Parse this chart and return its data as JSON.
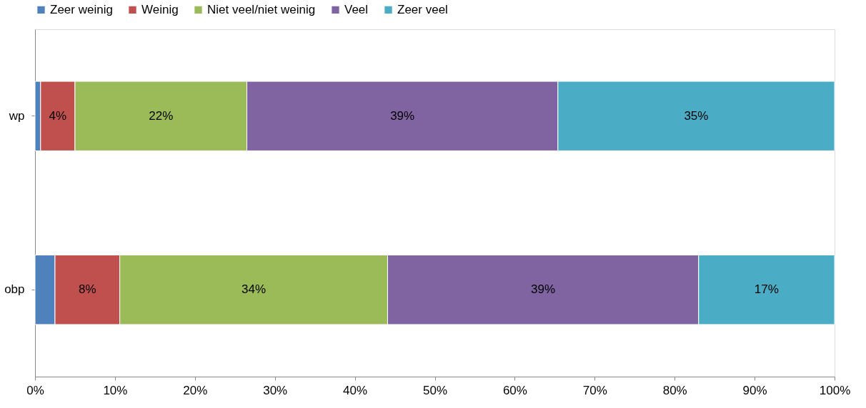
{
  "chart_data": {
    "type": "bar",
    "orientation": "horizontal",
    "stacked": true,
    "categories": [
      "wp",
      "obp"
    ],
    "series": [
      {
        "name": "Zeer weinig",
        "color": "#4f81bd",
        "values": [
          0.7,
          2.5
        ],
        "value_labels": [
          null,
          null
        ]
      },
      {
        "name": "Weinig",
        "color": "#c0504d",
        "values": [
          4.3,
          8.1
        ],
        "value_labels": [
          "4%",
          "8%"
        ]
      },
      {
        "name": "Niet veel/niet weinig",
        "color": "#9bbb59",
        "values": [
          21.5,
          33.5
        ],
        "value_labels": [
          "22%",
          "34%"
        ]
      },
      {
        "name": "Veel",
        "color": "#8064a2",
        "values": [
          38.9,
          38.9
        ],
        "value_labels": [
          "39%",
          "39%"
        ]
      },
      {
        "name": "Zeer veel",
        "color": "#4bacc6",
        "values": [
          34.6,
          17.0
        ],
        "value_labels": [
          "35%",
          "17%"
        ]
      }
    ],
    "xlim": [
      0,
      100
    ],
    "xticks": [
      {
        "value": 0,
        "label": "0%"
      },
      {
        "value": 10,
        "label": "10%"
      },
      {
        "value": 20,
        "label": "20%"
      },
      {
        "value": 30,
        "label": "30%"
      },
      {
        "value": 40,
        "label": "40%"
      },
      {
        "value": 50,
        "label": "50%"
      },
      {
        "value": 60,
        "label": "60%"
      },
      {
        "value": 70,
        "label": "70%"
      },
      {
        "value": 80,
        "label": "80%"
      },
      {
        "value": 90,
        "label": "90%"
      },
      {
        "value": 100,
        "label": "100%"
      }
    ],
    "legend": "top",
    "grid": false
  }
}
